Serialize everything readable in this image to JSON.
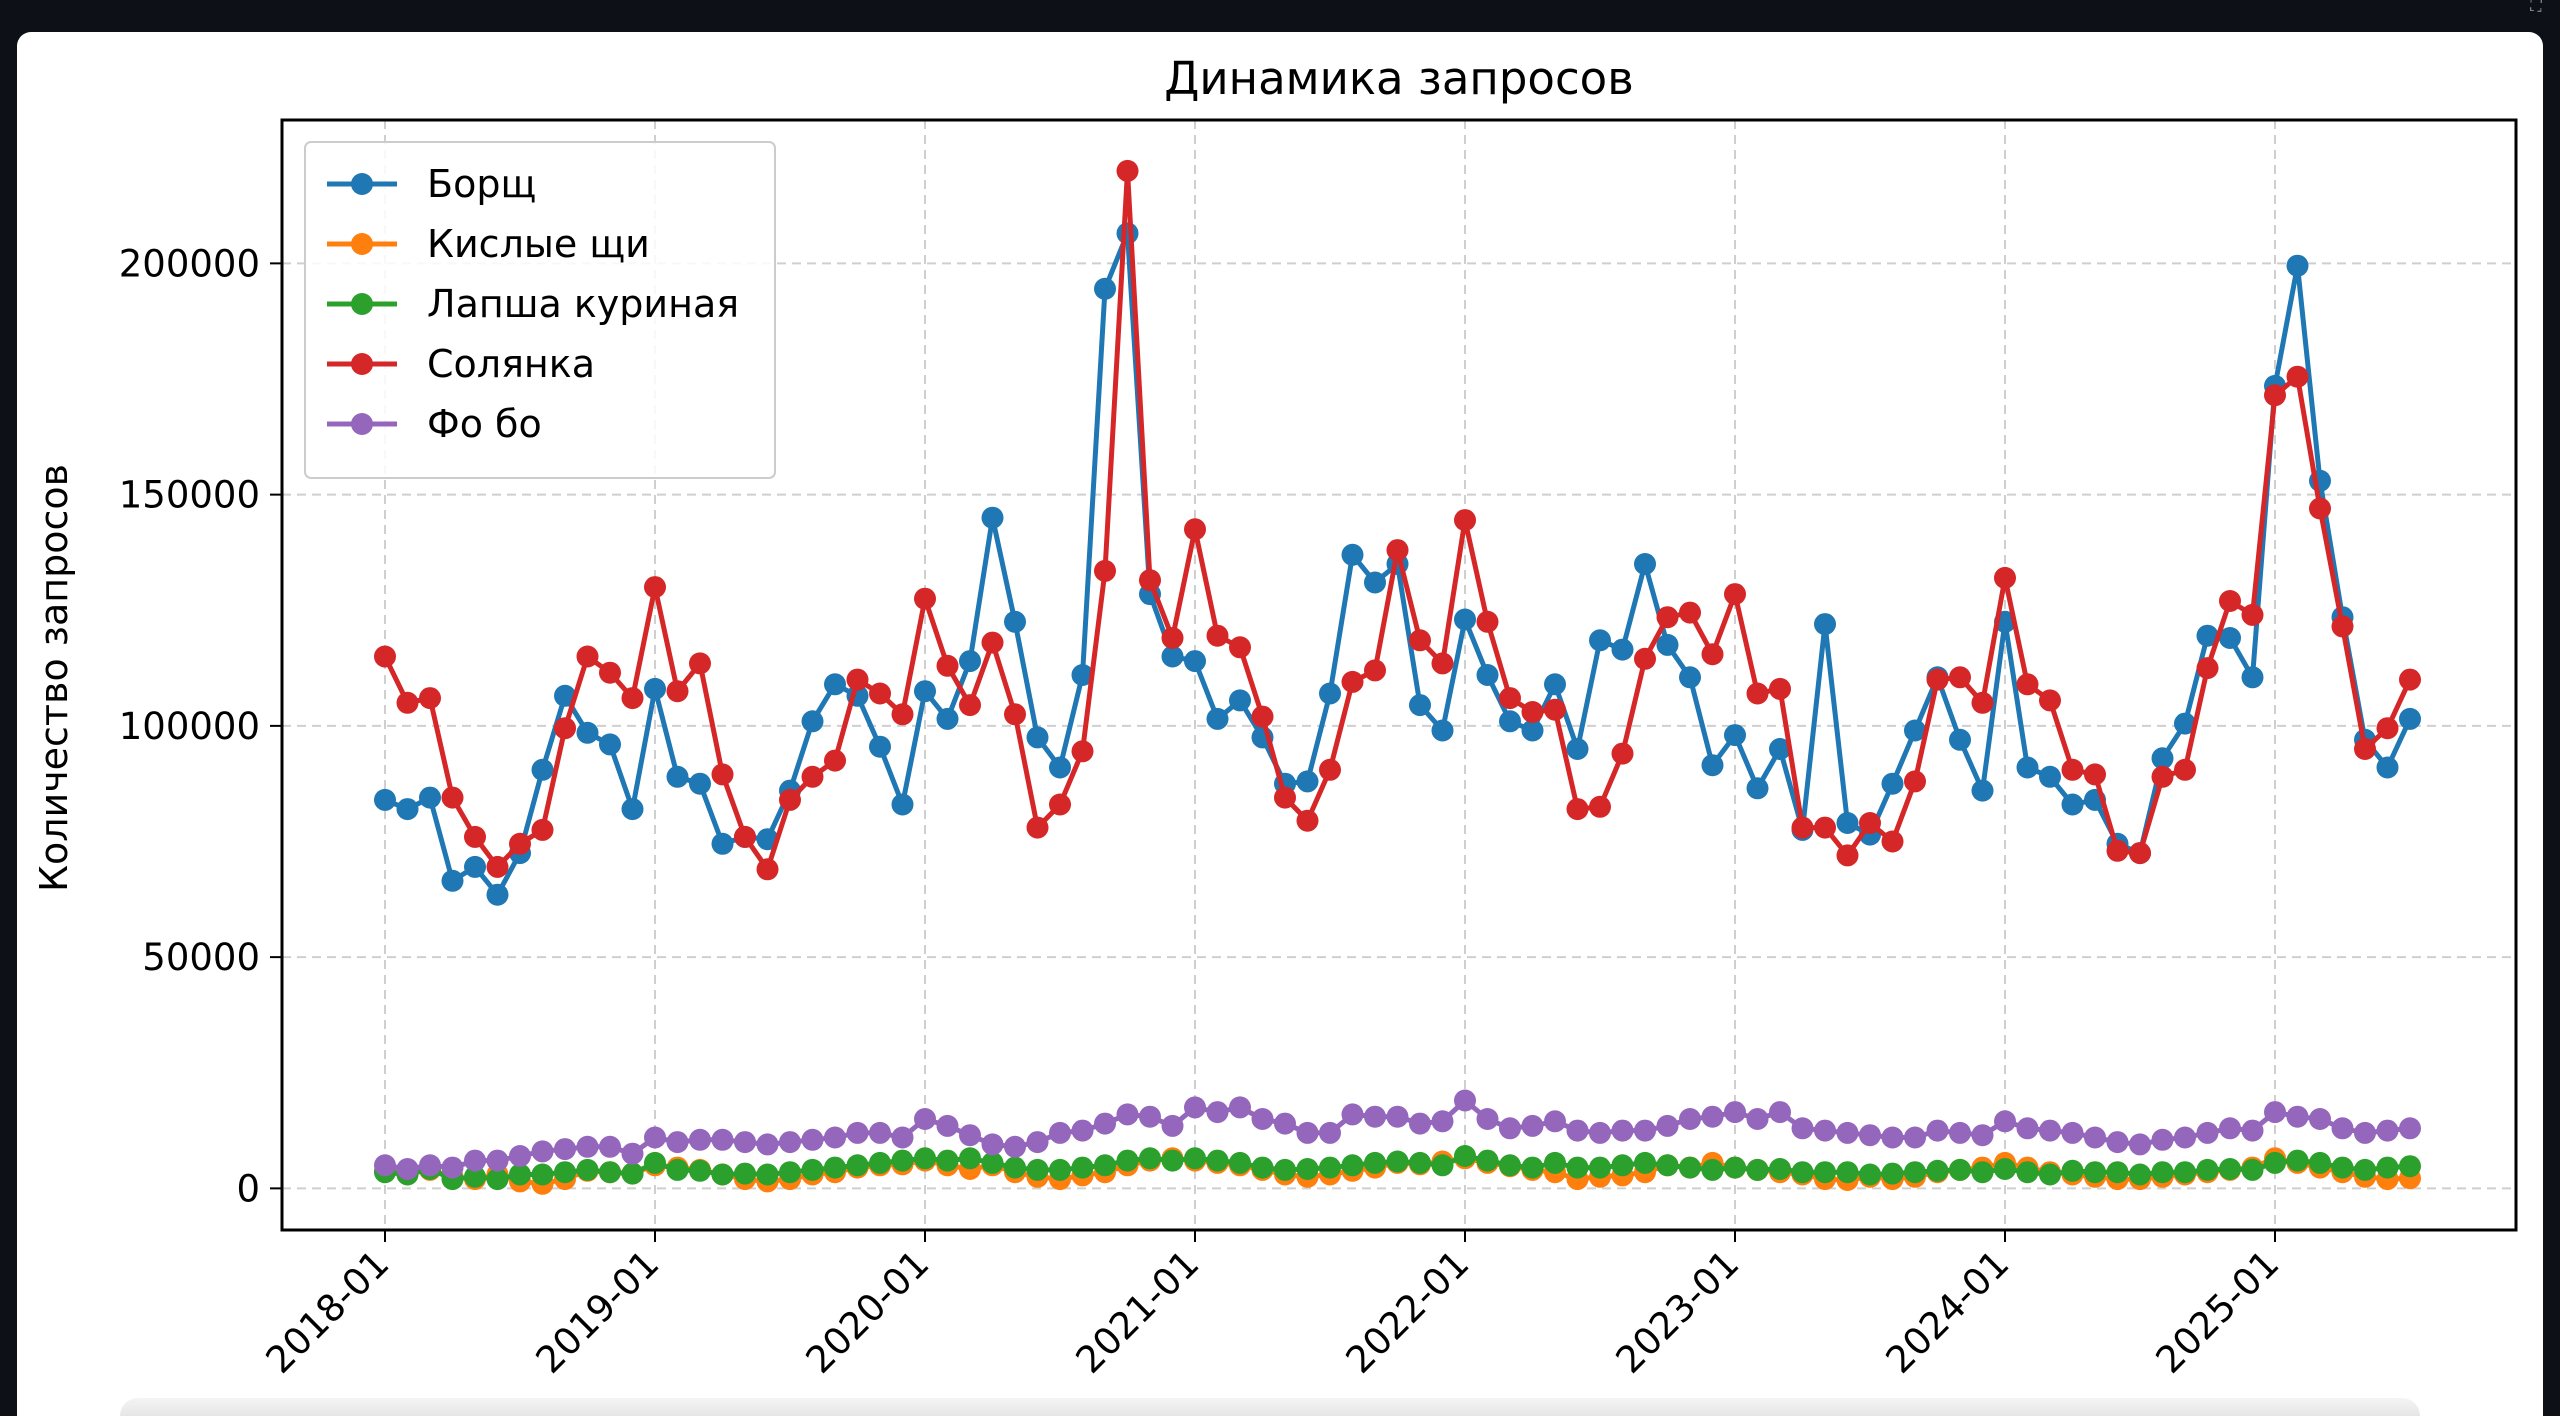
{
  "window": {
    "caption": "",
    "expand_icon": "expand-icon"
  },
  "chart_data": {
    "type": "line",
    "title": "Динамика запросов",
    "xlabel": "",
    "ylabel": "Количество запросов",
    "x_start": "2018-01",
    "x_ticks": [
      "2018-01",
      "2019-01",
      "2020-01",
      "2021-01",
      "2022-01",
      "2023-01",
      "2024-01",
      "2025-01"
    ],
    "y_ticks": [
      0,
      50000,
      100000,
      150000,
      200000
    ],
    "ylim": [
      -9000,
      231000
    ],
    "grid": true,
    "legend_position": "top-left",
    "series": [
      {
        "name": "Борщ",
        "color": "#1f77b4",
        "values": [
          84000,
          82000,
          84500,
          66500,
          69500,
          63500,
          72500,
          90500,
          106500,
          98500,
          96000,
          82000,
          108000,
          89000,
          87500,
          74500,
          76000,
          75500,
          86000,
          101000,
          109000,
          106500,
          95500,
          83000,
          107500,
          101500,
          114000,
          145000,
          122500,
          97500,
          91000,
          111000,
          194500,
          206500,
          128500,
          115000,
          114000,
          101500,
          105500,
          97500,
          87500,
          88000,
          107000,
          137000,
          131000,
          135000,
          104500,
          99000,
          123000,
          111000,
          101000,
          99000,
          109000,
          95000,
          118500,
          116500,
          135000,
          117500,
          110500,
          91500,
          98000,
          86500,
          95000,
          77500,
          122000,
          79000,
          76500,
          87500,
          99000,
          110500,
          97000,
          86000,
          122500,
          91000,
          89000,
          83000,
          84000,
          74500,
          72500,
          93000,
          100500,
          119500,
          119000,
          110500,
          173500,
          199500,
          153000,
          123500,
          97000,
          91000,
          101500
        ]
      },
      {
        "name": "Кислые щи",
        "color": "#ff7f0e",
        "values": [
          3800,
          3200,
          4000,
          2500,
          2000,
          3000,
          1500,
          1000,
          2000,
          3800,
          3500,
          3200,
          5000,
          4500,
          4000,
          3000,
          2000,
          1500,
          2000,
          3000,
          3500,
          4500,
          5000,
          5200,
          6000,
          5000,
          4200,
          5000,
          3500,
          2500,
          2000,
          2800,
          3500,
          5000,
          6000,
          6500,
          6000,
          5500,
          5000,
          4000,
          3000,
          2500,
          3000,
          3800,
          4500,
          5500,
          5200,
          5800,
          6500,
          5500,
          4800,
          4000,
          3500,
          2000,
          2500,
          2800,
          3500,
          5000,
          4500,
          5500,
          4500,
          4000,
          3500,
          3000,
          2000,
          1800,
          2500,
          2000,
          2500,
          3500,
          4000,
          4500,
          5500,
          4500,
          3500,
          3000,
          2500,
          2000,
          2000,
          2500,
          3000,
          3500,
          4000,
          4500,
          6500,
          5500,
          4500,
          3500,
          2500,
          2000,
          2200
        ]
      },
      {
        "name": "Лапша куриная",
        "color": "#2ca02c",
        "values": [
          3500,
          3000,
          4200,
          2000,
          2500,
          2000,
          3000,
          3000,
          3500,
          4000,
          3500,
          3200,
          5500,
          4000,
          3800,
          3000,
          3200,
          3000,
          3500,
          4000,
          4500,
          5000,
          5500,
          6000,
          6500,
          6000,
          6500,
          5500,
          4500,
          4000,
          4000,
          4500,
          5000,
          6000,
          6500,
          6000,
          6500,
          6000,
          5500,
          4500,
          4000,
          4200,
          4500,
          5000,
          5500,
          5800,
          5500,
          5000,
          7000,
          6000,
          5000,
          4500,
          5500,
          4500,
          4500,
          5000,
          5500,
          5000,
          4500,
          4000,
          4500,
          4000,
          4200,
          3500,
          3500,
          3500,
          3000,
          3200,
          3500,
          3800,
          4000,
          3500,
          4200,
          3500,
          3000,
          3800,
          3500,
          3500,
          3000,
          3500,
          3500,
          4000,
          4200,
          4000,
          5500,
          6000,
          5500,
          4500,
          4000,
          4500,
          4800
        ]
      },
      {
        "name": "Солянка",
        "color": "#d62728",
        "values": [
          115000,
          105000,
          106000,
          84500,
          76000,
          69500,
          74500,
          77500,
          99500,
          115000,
          111500,
          106000,
          130000,
          107500,
          113500,
          89500,
          76000,
          69000,
          84000,
          89000,
          92500,
          110000,
          107000,
          102500,
          127500,
          113000,
          104500,
          118000,
          102500,
          78000,
          83000,
          94500,
          133500,
          220000,
          131500,
          119000,
          142500,
          119500,
          117000,
          102000,
          84500,
          79500,
          90500,
          109500,
          112000,
          138000,
          118500,
          113500,
          144500,
          122500,
          106000,
          103000,
          103500,
          82000,
          82500,
          94000,
          114500,
          123500,
          124500,
          115500,
          128500,
          107000,
          108000,
          78000,
          78000,
          72000,
          79000,
          75000,
          88000,
          110000,
          110500,
          105000,
          132000,
          109000,
          105500,
          90500,
          89500,
          73000,
          72500,
          89000,
          90500,
          112500,
          127000,
          124000,
          171500,
          175500,
          147000,
          121500,
          95000,
          99500,
          110000
        ]
      },
      {
        "name": "Фо бо",
        "color": "#9467bd",
        "values": [
          5000,
          4200,
          5000,
          4500,
          6000,
          6000,
          7000,
          8000,
          8500,
          9000,
          9000,
          7500,
          11000,
          10000,
          10500,
          10500,
          10000,
          9500,
          10000,
          10500,
          11000,
          12000,
          12000,
          11000,
          15000,
          13500,
          11500,
          9500,
          9000,
          10000,
          12000,
          12500,
          14000,
          16000,
          15500,
          13500,
          17500,
          16500,
          17500,
          15000,
          14000,
          12000,
          12000,
          16000,
          15500,
          15500,
          14000,
          14500,
          19000,
          15000,
          13000,
          13500,
          14500,
          12500,
          12000,
          12500,
          12500,
          13500,
          15000,
          15500,
          16500,
          15000,
          16500,
          13000,
          12500,
          12000,
          11500,
          11000,
          11000,
          12500,
          12000,
          11500,
          14500,
          13000,
          12500,
          12000,
          11000,
          10000,
          9500,
          10500,
          11000,
          12000,
          13000,
          12500,
          16500,
          15500,
          15000,
          13000,
          12000,
          12500,
          13000
        ]
      }
    ]
  }
}
